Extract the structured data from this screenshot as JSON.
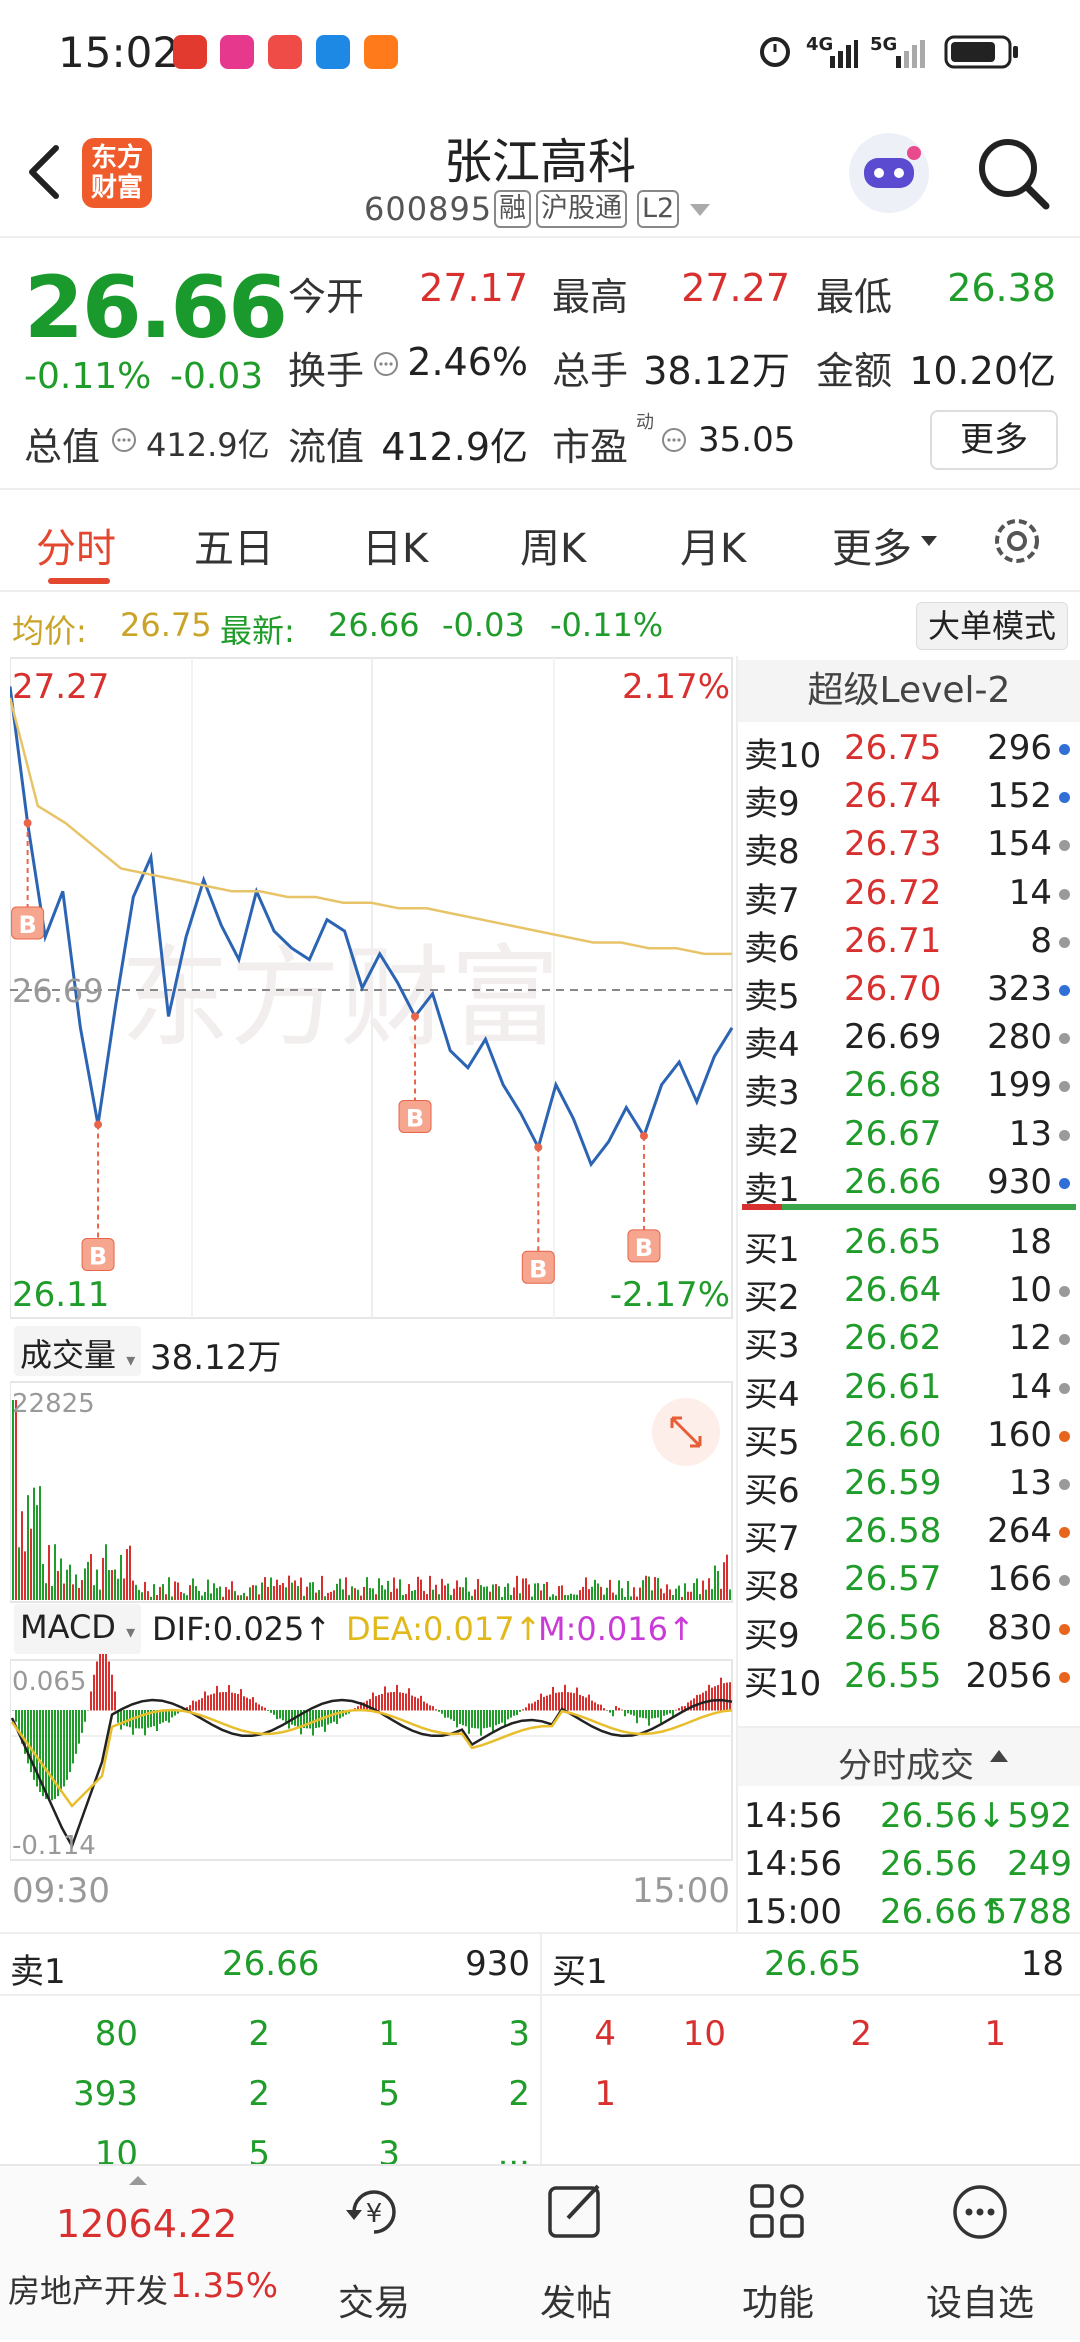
{
  "status_bar": {
    "time": "15:02",
    "network": [
      "4G",
      "5G"
    ],
    "battery": "battery-icon"
  },
  "header": {
    "back_icon": "back-arrow-icon",
    "logo_text": "东方\n财富",
    "title": "张江高科",
    "code": "600895",
    "tags": [
      "融",
      "沪股通",
      "L2"
    ],
    "search_icon": "search-icon"
  },
  "quote": {
    "price": "26.66",
    "change_pct": "-0.11%",
    "change": "-0.03",
    "open_label": "今开",
    "open": "27.17",
    "high_label": "最高",
    "high": "27.27",
    "low_label": "最低",
    "low": "26.38",
    "turnover_label": "换手",
    "turnover": "2.46%",
    "volume_label": "总手",
    "volume": "38.12万",
    "amount_label": "金额",
    "amount": "10.20亿",
    "mktcap_label": "总值",
    "mktcap": "412.9亿",
    "float_label": "流值",
    "float": "412.9亿",
    "pe_label": "市盈",
    "pe_sup": "动",
    "pe": "35.05",
    "more_label": "更多"
  },
  "tabs": [
    "分时",
    "五日",
    "日K",
    "周K",
    "月K",
    "更多"
  ],
  "avg_bar": {
    "avg_label": "均价:",
    "avg": "26.75",
    "latest_label": "最新:",
    "latest": "26.66",
    "chg": "-0.03",
    "pct": "-0.11%",
    "mode_button": "大单模式"
  },
  "chart": {
    "price_max": "27.27",
    "price_min": "26.11",
    "pct_max": "2.17%",
    "pct_min": "-2.17%",
    "ref_price": "26.69",
    "watermark": "东方财富",
    "buy_marker": "B",
    "volume_selector": "成交量",
    "volume_total": "38.12万",
    "volume_max": "22825",
    "macd_selector": "MACD",
    "dif": "DIF:0.025↑",
    "dea": "DEA:0.017↑",
    "m": "M:0.016↑",
    "macd_max": "0.065",
    "macd_min": "-0.114",
    "time_start": "09:30",
    "time_end": "15:00"
  },
  "chart_data": {
    "type": "line",
    "title": "",
    "x_range": [
      "09:30",
      "15:00"
    ],
    "ylim": [
      26.11,
      27.27
    ],
    "reference": 26.69,
    "series": [
      {
        "values": [
          27.22,
          26.98,
          26.78,
          26.86,
          26.62,
          26.45,
          26.66,
          26.85,
          26.92,
          26.64,
          26.78,
          26.88,
          26.8,
          26.74,
          26.86,
          26.79,
          26.76,
          26.74,
          26.81,
          26.79,
          26.69,
          26.75,
          26.7,
          26.64,
          26.68,
          26.58,
          26.55,
          26.6,
          26.52,
          26.47,
          26.41,
          26.52,
          26.46,
          26.38,
          26.42,
          26.48,
          26.43,
          26.52,
          26.56,
          26.49,
          26.57,
          26.62
        ]
      },
      {
        "values": [
          27.2,
          27.01,
          26.98,
          26.94,
          26.9,
          26.89,
          26.88,
          26.87,
          26.86,
          26.86,
          26.85,
          26.85,
          26.84,
          26.84,
          26.83,
          26.83,
          26.82,
          26.81,
          26.8,
          26.79,
          26.78,
          26.77,
          26.77,
          26.76,
          26.76,
          26.75,
          26.75
        ]
      }
    ]
  },
  "order_book": {
    "title": "超级Level-2",
    "asks": [
      {
        "label": "卖10",
        "price": "26.75",
        "qty": "296",
        "dot": "#2f6fd6"
      },
      {
        "label": "卖9",
        "price": "26.74",
        "qty": "152",
        "dot": "#2f6fd6"
      },
      {
        "label": "卖8",
        "price": "26.73",
        "qty": "154",
        "dot": "#9a9a9a"
      },
      {
        "label": "卖7",
        "price": "26.72",
        "qty": "14",
        "dot": "#9a9a9a"
      },
      {
        "label": "卖6",
        "price": "26.71",
        "qty": "8",
        "dot": "#9a9a9a"
      },
      {
        "label": "卖5",
        "price": "26.70",
        "qty": "323",
        "dot": "#2f6fd6"
      },
      {
        "label": "卖4",
        "price": "26.69",
        "qty": "280",
        "dot": "#9a9a9a"
      },
      {
        "label": "卖3",
        "price": "26.68",
        "qty": "199",
        "dot": "#9a9a9a"
      },
      {
        "label": "卖2",
        "price": "26.67",
        "qty": "13",
        "dot": "#9a9a9a"
      },
      {
        "label": "卖1",
        "price": "26.66",
        "qty": "930",
        "dot": "#2f6fd6"
      }
    ],
    "bids": [
      {
        "label": "买1",
        "price": "26.65",
        "qty": "18",
        "dot": ""
      },
      {
        "label": "买2",
        "price": "26.64",
        "qty": "10",
        "dot": "#9a9a9a"
      },
      {
        "label": "买3",
        "price": "26.62",
        "qty": "12",
        "dot": "#9a9a9a"
      },
      {
        "label": "买4",
        "price": "26.61",
        "qty": "14",
        "dot": "#9a9a9a"
      },
      {
        "label": "买5",
        "price": "26.60",
        "qty": "160",
        "dot": "#e8651e"
      },
      {
        "label": "买6",
        "price": "26.59",
        "qty": "13",
        "dot": "#9a9a9a"
      },
      {
        "label": "买7",
        "price": "26.58",
        "qty": "264",
        "dot": "#e8651e"
      },
      {
        "label": "买8",
        "price": "26.57",
        "qty": "166",
        "dot": "#9a9a9a"
      },
      {
        "label": "买9",
        "price": "26.56",
        "qty": "830",
        "dot": "#e8651e"
      },
      {
        "label": "买10",
        "price": "26.55",
        "qty": "2056",
        "dot": "#e8651e"
      }
    ],
    "ticks_title": "分时成交",
    "ticks": [
      {
        "time": "14:56",
        "price": "26.56↓",
        "qty": "592"
      },
      {
        "time": "14:56",
        "price": "26.56",
        "qty": "249"
      },
      {
        "time": "15:00",
        "price": "26.66↑",
        "qty": "5788"
      }
    ]
  },
  "tape": {
    "left": {
      "label": "卖1",
      "price": "26.66",
      "qty": "930",
      "rows": [
        [
          "80",
          "2",
          "1",
          "3"
        ],
        [
          "393",
          "2",
          "5",
          "2"
        ],
        [
          "10",
          "5",
          "3",
          "..."
        ]
      ]
    },
    "right": {
      "label": "买1",
      "price": "26.65",
      "qty": "18",
      "rows": [
        [
          "4",
          "10",
          "2",
          "1"
        ],
        [
          "1",
          "",
          "",
          ""
        ]
      ]
    }
  },
  "bottom_nav": {
    "index_value": "12064.22",
    "index_name": "房地产开发",
    "index_pct": "1.35%",
    "items": [
      "交易",
      "发帖",
      "功能",
      "设自选"
    ]
  }
}
